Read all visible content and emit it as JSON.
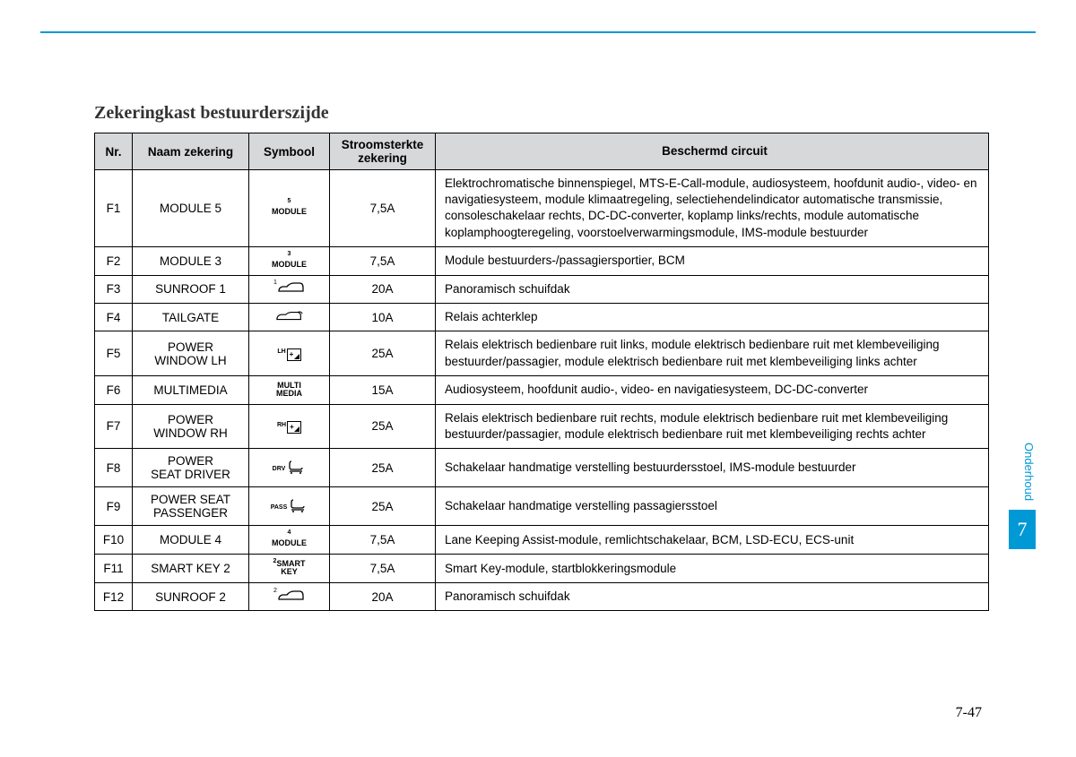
{
  "title": "Zekeringkast bestuurderszijde",
  "columns": {
    "nr": "Nr.",
    "name": "Naam zekering",
    "symbol": "Symbool",
    "amp": "Stroomsterkte zekering",
    "desc": "Beschermd circuit"
  },
  "rows": [
    {
      "nr": "F1",
      "name": "MODULE 5",
      "sym_type": "module",
      "sym_sup": "5",
      "sym_text": "MODULE",
      "amp": "7,5A",
      "desc": "Elektrochromatische binnenspiegel, MTS-E-Call-module, audiosysteem, hoofdunit audio-, video- en navigatiesysteem, module klimaatregeling, selectiehendelindicator automatische transmissie, consoleschakelaar rechts, DC-DC-converter, koplamp links/rechts, module automatische koplamphoogteregeling, voorstoelverwarmingsmodule, IMS-module bestuurder"
    },
    {
      "nr": "F2",
      "name": "MODULE 3",
      "sym_type": "module",
      "sym_sup": "3",
      "sym_text": "MODULE",
      "amp": "7,5A",
      "desc": "Module bestuurders-/passagiersportier, BCM"
    },
    {
      "nr": "F3",
      "name": "SUNROOF 1",
      "sym_type": "car",
      "sym_sup": "1",
      "amp": "20A",
      "desc": "Panoramisch schuifdak"
    },
    {
      "nr": "F4",
      "name": "TAILGATE",
      "sym_type": "tailgate",
      "amp": "10A",
      "desc": "Relais achterklep"
    },
    {
      "nr": "F5",
      "name": "POWER WINDOW LH",
      "sym_type": "pw",
      "sym_label": "LH",
      "amp": "25A",
      "desc": "Relais elektrisch bedienbare ruit links, module elektrisch bedienbare ruit met klembeveiliging bestuurder/passagier, module elektrisch bedienbare ruit met klembeveiliging links achter"
    },
    {
      "nr": "F6",
      "name": "MULTIMEDIA",
      "sym_type": "text2",
      "sym_line1": "MULTI",
      "sym_line2": "MEDIA",
      "amp": "15A",
      "desc": "Audiosysteem, hoofdunit audio-, video- en navigatiesysteem, DC-DC-converter"
    },
    {
      "nr": "F7",
      "name": "POWER WINDOW RH",
      "sym_type": "pw",
      "sym_label": "RH",
      "amp": "25A",
      "desc": "Relais elektrisch bedienbare ruit rechts, module elektrisch bedienbare ruit met klembeveiliging bestuurder/passagier, module elektrisch bedienbare ruit met klembeveiliging rechts achter"
    },
    {
      "nr": "F8",
      "name": "POWER SEAT DRIVER",
      "sym_type": "seat",
      "sym_label": "DRV",
      "amp": "25A",
      "desc": "Schakelaar handmatige verstelling bestuurdersstoel, IMS-module bestuurder"
    },
    {
      "nr": "F9",
      "name": "POWER SEAT PASSENGER",
      "sym_type": "seat",
      "sym_label": "PASS",
      "amp": "25A",
      "desc": "Schakelaar handmatige verstelling passagiersstoel"
    },
    {
      "nr": "F10",
      "name": "MODULE 4",
      "sym_type": "module",
      "sym_sup": "4",
      "sym_text": "MODULE",
      "amp": "7,5A",
      "desc": "Lane Keeping Assist-module, remlichtschakelaar, BCM, LSD-ECU, ECS-unit"
    },
    {
      "nr": "F11",
      "name": "SMART KEY 2",
      "sym_type": "text2sup",
      "sym_sup": "2",
      "sym_line1": "SMART",
      "sym_line2": "KEY",
      "amp": "7,5A",
      "desc": "Smart Key-module, startblokkeringsmodule"
    },
    {
      "nr": "F12",
      "name": "SUNROOF 2",
      "sym_type": "car",
      "sym_sup": "2",
      "amp": "20A",
      "desc": "Panoramisch schuifdak"
    }
  ],
  "side_label": "Onderhoud",
  "side_num": "7",
  "page_num": "7-47",
  "colors": {
    "accent": "#0099d6",
    "header_bg": "#d7d8d9"
  }
}
